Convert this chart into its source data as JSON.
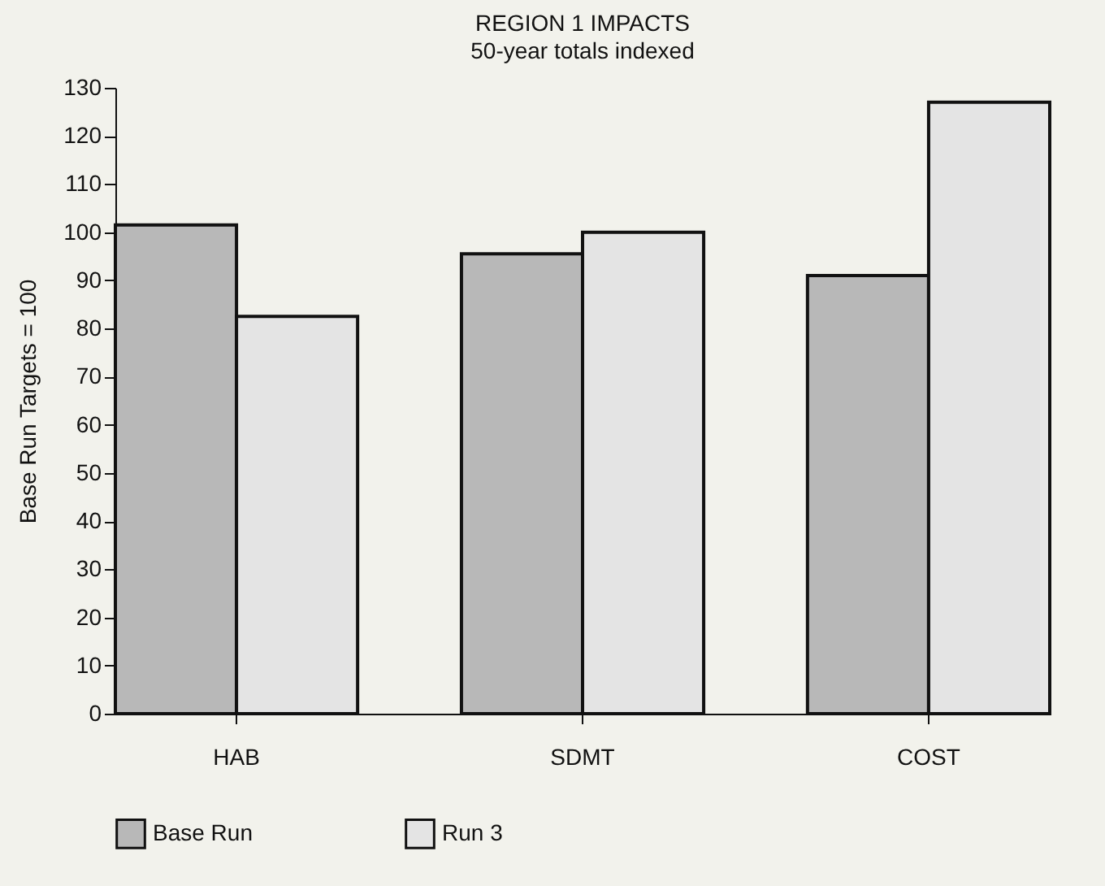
{
  "chart_data": {
    "type": "bar",
    "title": "REGION 1 IMPACTS",
    "subtitle": "50-year totals indexed",
    "ylabel": "Base Run Targets = 100",
    "categories": [
      "HAB",
      "SDMT",
      "COST"
    ],
    "series": [
      {
        "name": "Base Run",
        "color": "#b8b8b8",
        "values": [
          101.5,
          95.5,
          91
        ]
      },
      {
        "name": "Run 3",
        "color": "#e4e4e4",
        "values": [
          82.5,
          100,
          127
        ]
      }
    ],
    "ylim": [
      0,
      130
    ],
    "yticks": [
      0,
      10,
      20,
      30,
      40,
      50,
      60,
      70,
      80,
      90,
      100,
      110,
      120,
      130
    ],
    "grid": false,
    "legend": "bottom"
  }
}
